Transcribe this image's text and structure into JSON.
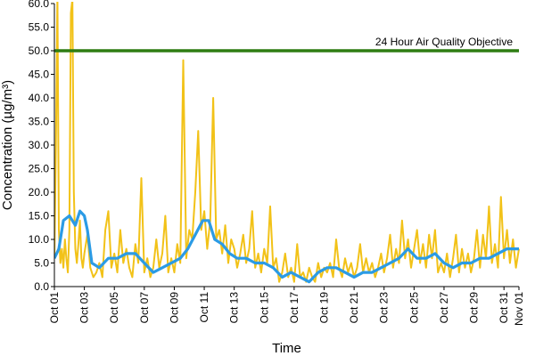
{
  "chart_data": {
    "type": "line",
    "title": "",
    "xlabel": "Time",
    "ylabel": "Concentration (µg/m³)",
    "ylim": [
      0,
      60
    ],
    "yticks": [
      "0.0",
      "5.0",
      "10.0",
      "15.0",
      "20.0",
      "25.0",
      "30.0",
      "35.0",
      "40.0",
      "45.0",
      "50.0",
      "55.0",
      "60.0"
    ],
    "xlim": [
      "2014-10-01",
      "2014-11-01"
    ],
    "xticks": [
      "Oct 01",
      "Oct 03",
      "Oct 05",
      "Oct 07",
      "Oct 09",
      "Oct 11",
      "Oct 13",
      "Oct 15",
      "Oct 17",
      "Oct 19",
      "Oct 21",
      "Oct 23",
      "Oct 25",
      "Oct 27",
      "Oct 29",
      "Oct 31",
      "Nov 01"
    ],
    "grid": false,
    "legend": "none",
    "annotations": [
      {
        "text": "24 Hour Air Quality Objective",
        "y": 50,
        "color": "#2e7d12"
      }
    ],
    "series": [
      {
        "color": "#f2c218",
        "values": [
          [
            1.0,
            6
          ],
          [
            1.1,
            30
          ],
          [
            1.2,
            62
          ],
          [
            1.3,
            12
          ],
          [
            1.4,
            5
          ],
          [
            1.5,
            8
          ],
          [
            1.6,
            4
          ],
          [
            1.7,
            10
          ],
          [
            1.8,
            6
          ],
          [
            1.9,
            3
          ],
          [
            2.0,
            12
          ],
          [
            2.1,
            58
          ],
          [
            2.2,
            61
          ],
          [
            2.3,
            20
          ],
          [
            2.4,
            8
          ],
          [
            2.5,
            5
          ],
          [
            2.6,
            9
          ],
          [
            2.7,
            14
          ],
          [
            2.8,
            6
          ],
          [
            2.9,
            4
          ],
          [
            3.0,
            7
          ],
          [
            3.2,
            11
          ],
          [
            3.4,
            4
          ],
          [
            3.6,
            2
          ],
          [
            3.8,
            3
          ],
          [
            4.0,
            5
          ],
          [
            4.2,
            2
          ],
          [
            4.4,
            12
          ],
          [
            4.6,
            16
          ],
          [
            4.8,
            4
          ],
          [
            5.0,
            7
          ],
          [
            5.2,
            3
          ],
          [
            5.4,
            12
          ],
          [
            5.6,
            5
          ],
          [
            5.8,
            8
          ],
          [
            6.0,
            4
          ],
          [
            6.2,
            2
          ],
          [
            6.4,
            9
          ],
          [
            6.6,
            5
          ],
          [
            6.8,
            23
          ],
          [
            7.0,
            3
          ],
          [
            7.2,
            6
          ],
          [
            7.4,
            2
          ],
          [
            7.6,
            4
          ],
          [
            7.8,
            10
          ],
          [
            8.0,
            4
          ],
          [
            8.2,
            7
          ],
          [
            8.4,
            15
          ],
          [
            8.6,
            3
          ],
          [
            8.8,
            6
          ],
          [
            9.0,
            3
          ],
          [
            9.2,
            9
          ],
          [
            9.4,
            5
          ],
          [
            9.6,
            48
          ],
          [
            9.8,
            6
          ],
          [
            10.0,
            12
          ],
          [
            10.2,
            10
          ],
          [
            10.4,
            20
          ],
          [
            10.6,
            33
          ],
          [
            10.8,
            12
          ],
          [
            11.0,
            16
          ],
          [
            11.2,
            8
          ],
          [
            11.4,
            14
          ],
          [
            11.6,
            40
          ],
          [
            11.8,
            10
          ],
          [
            12.0,
            12
          ],
          [
            12.2,
            7
          ],
          [
            12.4,
            13
          ],
          [
            12.6,
            5
          ],
          [
            12.8,
            10
          ],
          [
            13.0,
            8
          ],
          [
            13.2,
            4
          ],
          [
            13.4,
            7
          ],
          [
            13.6,
            11
          ],
          [
            13.8,
            5
          ],
          [
            14.0,
            8
          ],
          [
            14.2,
            16
          ],
          [
            14.4,
            4
          ],
          [
            14.6,
            7
          ],
          [
            14.8,
            3
          ],
          [
            15.0,
            8
          ],
          [
            15.2,
            5
          ],
          [
            15.4,
            17
          ],
          [
            15.6,
            4
          ],
          [
            15.8,
            6
          ],
          [
            16.0,
            1
          ],
          [
            16.2,
            3
          ],
          [
            16.4,
            7
          ],
          [
            16.6,
            2
          ],
          [
            16.8,
            4
          ],
          [
            17.0,
            1
          ],
          [
            17.2,
            9
          ],
          [
            17.4,
            2
          ],
          [
            17.6,
            3
          ],
          [
            17.8,
            1
          ],
          [
            18.0,
            4
          ],
          [
            18.2,
            2
          ],
          [
            18.4,
            1
          ],
          [
            18.6,
            5
          ],
          [
            18.8,
            2
          ],
          [
            19.0,
            4
          ],
          [
            19.2,
            3
          ],
          [
            19.4,
            5
          ],
          [
            19.6,
            2
          ],
          [
            19.8,
            10
          ],
          [
            20.0,
            4
          ],
          [
            20.2,
            2
          ],
          [
            20.4,
            6
          ],
          [
            20.6,
            3
          ],
          [
            20.8,
            5
          ],
          [
            21.0,
            2
          ],
          [
            21.2,
            4
          ],
          [
            21.4,
            9
          ],
          [
            21.6,
            3
          ],
          [
            21.8,
            6
          ],
          [
            22.0,
            3
          ],
          [
            22.2,
            5
          ],
          [
            22.4,
            2
          ],
          [
            22.6,
            4
          ],
          [
            22.8,
            7
          ],
          [
            23.0,
            3
          ],
          [
            23.2,
            6
          ],
          [
            23.4,
            11
          ],
          [
            23.6,
            4
          ],
          [
            23.8,
            8
          ],
          [
            24.0,
            5
          ],
          [
            24.2,
            14
          ],
          [
            24.4,
            6
          ],
          [
            24.6,
            10
          ],
          [
            24.8,
            4
          ],
          [
            25.0,
            8
          ],
          [
            25.2,
            12
          ],
          [
            25.4,
            5
          ],
          [
            25.6,
            9
          ],
          [
            25.8,
            4
          ],
          [
            26.0,
            11
          ],
          [
            26.2,
            6
          ],
          [
            26.4,
            12
          ],
          [
            26.6,
            3
          ],
          [
            26.8,
            5
          ],
          [
            27.0,
            3
          ],
          [
            27.2,
            7
          ],
          [
            27.4,
            2
          ],
          [
            27.6,
            6
          ],
          [
            27.8,
            11
          ],
          [
            28.0,
            3
          ],
          [
            28.2,
            8
          ],
          [
            28.4,
            4
          ],
          [
            28.6,
            7
          ],
          [
            28.8,
            3
          ],
          [
            29.0,
            6
          ],
          [
            29.2,
            12
          ],
          [
            29.4,
            4
          ],
          [
            29.6,
            11
          ],
          [
            29.8,
            6
          ],
          [
            30.0,
            17
          ],
          [
            30.2,
            5
          ],
          [
            30.4,
            9
          ],
          [
            30.6,
            4
          ],
          [
            30.8,
            19
          ],
          [
            31.0,
            6
          ],
          [
            31.2,
            12
          ],
          [
            31.4,
            5
          ],
          [
            31.6,
            10
          ],
          [
            31.8,
            4
          ],
          [
            32.0,
            8
          ]
        ]
      },
      {
        "color": "#2b9be5",
        "values": [
          [
            1.0,
            6
          ],
          [
            1.3,
            8
          ],
          [
            1.6,
            14
          ],
          [
            2.0,
            15
          ],
          [
            2.4,
            13
          ],
          [
            2.7,
            16
          ],
          [
            3.0,
            15
          ],
          [
            3.2,
            12
          ],
          [
            3.5,
            5
          ],
          [
            4.0,
            4
          ],
          [
            4.6,
            6
          ],
          [
            5.2,
            6
          ],
          [
            5.8,
            7
          ],
          [
            6.4,
            7
          ],
          [
            7.0,
            5
          ],
          [
            7.6,
            3
          ],
          [
            8.2,
            4
          ],
          [
            8.8,
            5
          ],
          [
            9.4,
            6
          ],
          [
            9.9,
            8
          ],
          [
            10.4,
            11
          ],
          [
            10.9,
            14
          ],
          [
            11.3,
            14
          ],
          [
            11.7,
            10
          ],
          [
            12.2,
            9
          ],
          [
            12.7,
            7
          ],
          [
            13.2,
            6
          ],
          [
            13.8,
            6
          ],
          [
            14.4,
            5
          ],
          [
            15.0,
            5
          ],
          [
            15.6,
            4
          ],
          [
            16.2,
            2
          ],
          [
            16.8,
            3
          ],
          [
            17.4,
            2
          ],
          [
            18.0,
            1
          ],
          [
            18.6,
            3
          ],
          [
            19.2,
            4
          ],
          [
            19.8,
            4
          ],
          [
            20.4,
            3
          ],
          [
            21.0,
            2
          ],
          [
            21.6,
            3
          ],
          [
            22.2,
            3
          ],
          [
            22.8,
            4
          ],
          [
            23.4,
            5
          ],
          [
            24.0,
            6
          ],
          [
            24.6,
            8
          ],
          [
            25.2,
            6
          ],
          [
            25.8,
            6
          ],
          [
            26.4,
            7
          ],
          [
            27.0,
            5
          ],
          [
            27.6,
            4
          ],
          [
            28.2,
            5
          ],
          [
            28.8,
            5
          ],
          [
            29.4,
            6
          ],
          [
            30.0,
            6
          ],
          [
            30.6,
            7
          ],
          [
            31.2,
            8
          ],
          [
            31.6,
            8
          ],
          [
            32.0,
            8
          ]
        ]
      },
      {
        "color": "#2e7d12",
        "values": [
          [
            1.0,
            50
          ],
          [
            32.0,
            50
          ]
        ]
      }
    ]
  }
}
